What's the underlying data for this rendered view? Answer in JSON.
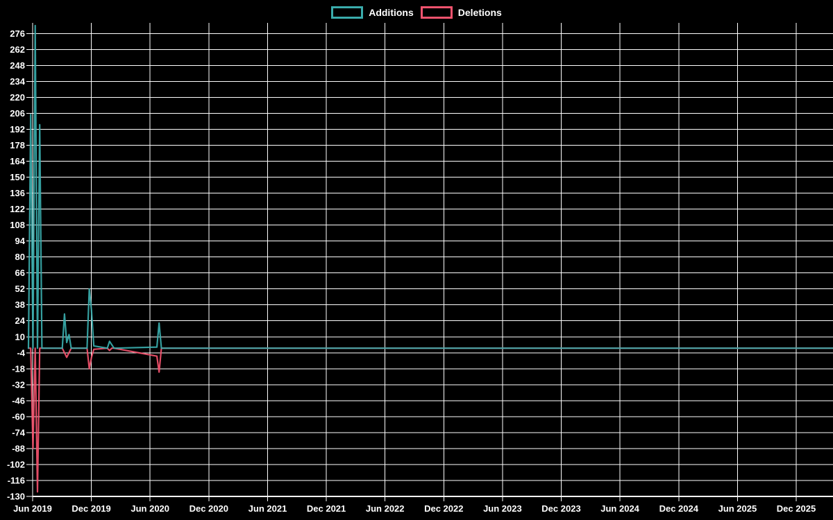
{
  "legend": {
    "items": [
      {
        "label": "Additions",
        "series": "additions"
      },
      {
        "label": "Deletions",
        "series": "deletions"
      }
    ]
  },
  "colors": {
    "background": "#000000",
    "grid": "#ffffff",
    "text": "#ffffff",
    "additions": "#3aacac",
    "deletions": "#f4536e"
  },
  "chart_data": {
    "type": "line",
    "title": "",
    "xlabel": "",
    "ylabel": "",
    "grid": true,
    "legend_position": "top-center",
    "ylim": [
      -130,
      285
    ],
    "y_tick_step": 14,
    "y_tick_values": [
      276,
      262,
      248,
      234,
      220,
      206,
      192,
      178,
      164,
      150,
      136,
      122,
      108,
      94,
      80,
      66,
      52,
      38,
      24,
      10,
      -4,
      -18,
      -32,
      -46,
      -60,
      -74,
      -88,
      -102,
      -116,
      -130
    ],
    "x_tick_labels": [
      "Jun 2019",
      "Dec 2019",
      "Jun 2020",
      "Dec 2020",
      "Jun 2021",
      "Dec 2021",
      "Jun 2022",
      "Dec 2022",
      "Jun 2023",
      "Dec 2023",
      "Jun 2024",
      "Dec 2024",
      "Jun 2025",
      "Dec 2025"
    ],
    "dates": [
      "2019-05-19",
      "2019-05-26",
      "2019-06-02",
      "2019-06-09",
      "2019-06-16",
      "2019-06-23",
      "2019-06-30",
      "2019-09-01",
      "2019-09-08",
      "2019-09-15",
      "2019-09-22",
      "2019-09-29",
      "2019-11-17",
      "2019-11-24",
      "2019-12-01",
      "2019-12-08",
      "2020-01-19",
      "2020-01-26",
      "2020-02-02",
      "2020-02-09",
      "2020-06-21",
      "2020-06-28",
      "2020-07-05",
      "2026-03-22"
    ],
    "series": [
      {
        "name": "Additions",
        "color_key": "additions",
        "values": [
          0,
          205,
          0,
          283,
          0,
          196,
          0,
          0,
          30,
          5,
          12,
          0,
          0,
          52,
          33,
          2,
          0,
          6,
          3,
          0,
          1,
          22,
          0,
          0
        ]
      },
      {
        "name": "Deletions",
        "color_key": "deletions",
        "values": [
          0,
          0,
          -88,
          0,
          -126,
          0,
          0,
          0,
          -4,
          -8,
          -4,
          0,
          0,
          -18,
          -8,
          -1,
          0,
          -2,
          0,
          0,
          -7,
          -21,
          0,
          0
        ]
      }
    ]
  }
}
